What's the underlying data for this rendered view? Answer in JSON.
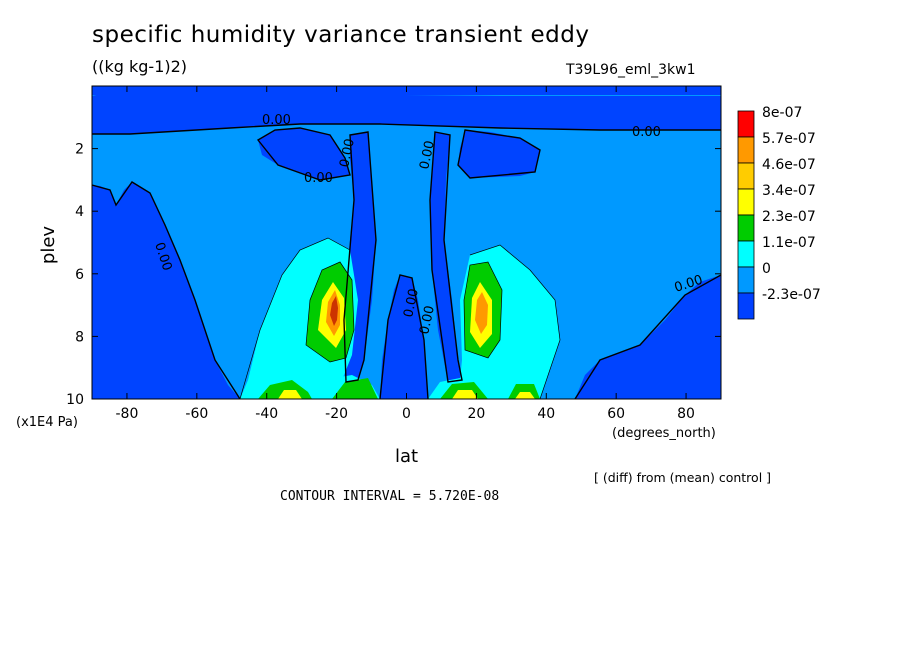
{
  "title": "specific humidity variance transient eddy",
  "units": "((kg kg-1)2)",
  "run_label": "T39L96_eml_3kw1",
  "x_axis": {
    "label": "lat",
    "units": "(degrees_north)",
    "range": [
      -90,
      90
    ]
  },
  "y_axis": {
    "label": "plev",
    "units": "(x1E4 Pa)",
    "range": [
      0,
      10
    ]
  },
  "diff_note": "[ (diff) from (mean) control ]",
  "contour_interval": "CONTOUR INTERVAL = 5.720E-08",
  "chart_data": {
    "type": "heatmap",
    "title": "specific humidity variance transient eddy",
    "xlabel": "lat",
    "ylabel": "plev",
    "xlim": [
      -90,
      90
    ],
    "ylim": [
      10,
      0
    ],
    "x_ticks": [
      "-80",
      "-60",
      "-40",
      "-20",
      "0",
      "20",
      "40",
      "60",
      "80"
    ],
    "y_ticks": [
      "2",
      "4",
      "6",
      "8",
      "10"
    ],
    "contour_labels": [
      "0.00",
      "0.00",
      "0.00",
      "0.00",
      "0.00",
      "0.00",
      "0.00",
      "0.00",
      "0.00"
    ],
    "legend": {
      "labels": [
        "8e-07",
        "5.7e-07",
        "4.6e-07",
        "3.4e-07",
        "2.3e-07",
        "1.1e-07",
        "0",
        "-2.3e-07"
      ],
      "colors": [
        "#ff0000",
        "#ff9900",
        "#ffcc00",
        "#ffff00",
        "#00cc00",
        "#00ffff",
        "#0099ff",
        "#0040ff"
      ]
    },
    "levels": {
      "background": "#0099ff",
      "negative": "#0044ff",
      "low_positive": "#00ffff",
      "mid": "#00cc00",
      "high": "#ffff00",
      "higher": "#ffcc00",
      "peak": "#ff9900",
      "max": "#cc3300"
    }
  }
}
